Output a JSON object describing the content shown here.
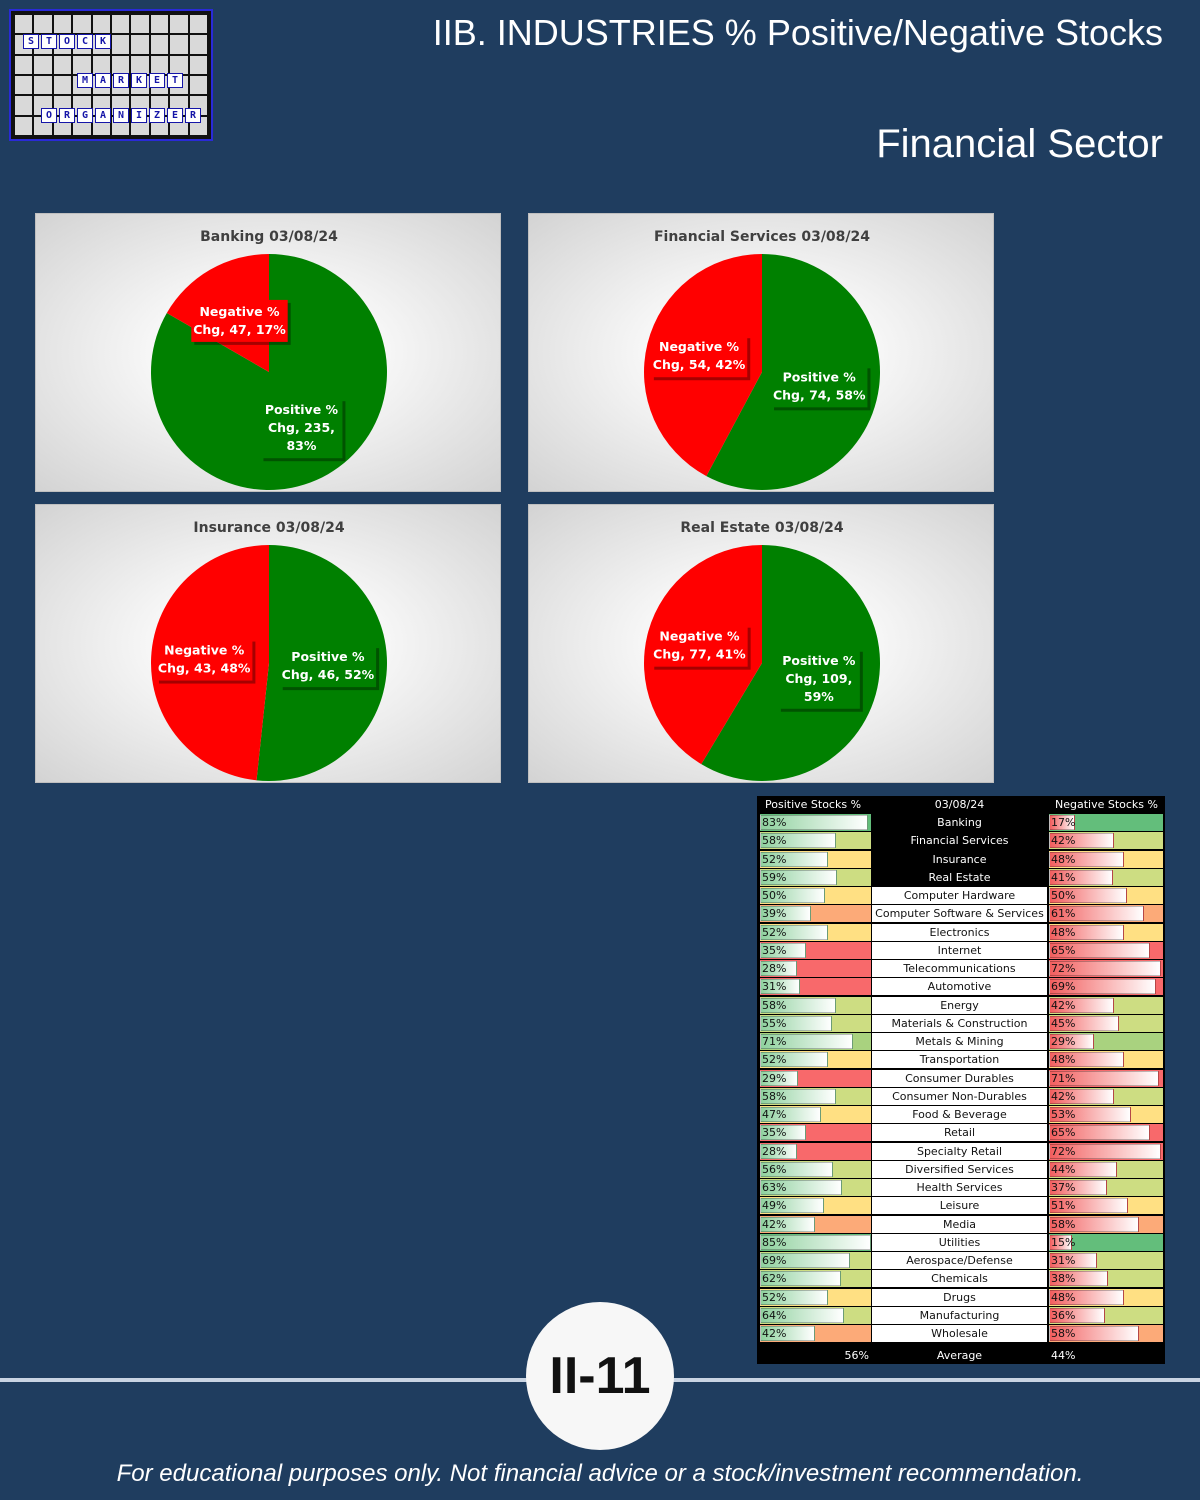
{
  "header": {
    "title": "IIB. INDUSTRIES % Positive/Negative Stocks",
    "subtitle": "Financial Sector"
  },
  "logo": {
    "words": [
      "STOCK",
      "MARKET",
      "ORGANIZER"
    ]
  },
  "chart_data": [
    {
      "type": "pie",
      "title": "Banking 03/08/24",
      "slices": [
        {
          "label": "Positive % Chg",
          "count": 235,
          "pct": 83,
          "color": "#008000"
        },
        {
          "label": "Negative % Chg",
          "count": 47,
          "pct": 17,
          "color": "#ff0000"
        }
      ],
      "data_labels": {
        "positive": [
          "Positive %",
          "Chg, 235,",
          "83%"
        ],
        "negative": [
          "Negative %",
          "Chg, 47, 17%"
        ]
      }
    },
    {
      "type": "pie",
      "title": "Financial Services 03/08/24",
      "slices": [
        {
          "label": "Positive % Chg",
          "count": 74,
          "pct": 58,
          "color": "#008000"
        },
        {
          "label": "Negative % Chg",
          "count": 54,
          "pct": 42,
          "color": "#ff0000"
        }
      ],
      "data_labels": {
        "positive": [
          "Positive %",
          "Chg, 74, 58%"
        ],
        "negative": [
          "Negative %",
          "Chg, 54, 42%"
        ]
      }
    },
    {
      "type": "pie",
      "title": "Insurance 03/08/24",
      "slices": [
        {
          "label": "Positive % Chg",
          "count": 46,
          "pct": 52,
          "color": "#008000"
        },
        {
          "label": "Negative % Chg",
          "count": 43,
          "pct": 48,
          "color": "#ff0000"
        }
      ],
      "data_labels": {
        "positive": [
          "Positive %",
          "Chg, 46, 52%"
        ],
        "negative": [
          "Negative %",
          "Chg, 43, 48%"
        ]
      }
    },
    {
      "type": "pie",
      "title": "Real Estate 03/08/24",
      "slices": [
        {
          "label": "Positive % Chg",
          "count": 109,
          "pct": 59,
          "color": "#008000"
        },
        {
          "label": "Negative % Chg",
          "count": 77,
          "pct": 41,
          "color": "#ff0000"
        }
      ],
      "data_labels": {
        "positive": [
          "Positive %",
          "Chg, 109,",
          "59%"
        ],
        "negative": [
          "Negative %",
          "Chg, 77, 41%"
        ]
      }
    },
    {
      "type": "table",
      "header": {
        "positive": "Positive Stocks %",
        "date": "03/08/24",
        "negative": "Negative Stocks %"
      },
      "rows": [
        {
          "name": "Banking",
          "pos": 83,
          "neg": 17,
          "highlight": true
        },
        {
          "name": "Financial Services",
          "pos": 58,
          "neg": 42,
          "highlight": true
        },
        {
          "name": "Insurance",
          "pos": 52,
          "neg": 48,
          "highlight": true
        },
        {
          "name": "Real Estate",
          "pos": 59,
          "neg": 41,
          "highlight": true
        },
        {
          "name": "Computer Hardware",
          "pos": 50,
          "neg": 50
        },
        {
          "name": "Computer Software & Services",
          "pos": 39,
          "neg": 61
        },
        {
          "name": "Electronics",
          "pos": 52,
          "neg": 48
        },
        {
          "name": "Internet",
          "pos": 35,
          "neg": 65
        },
        {
          "name": "Telecommunications",
          "pos": 28,
          "neg": 72
        },
        {
          "name": "Automotive",
          "pos": 31,
          "neg": 69
        },
        {
          "name": "Energy",
          "pos": 58,
          "neg": 42
        },
        {
          "name": "Materials & Construction",
          "pos": 55,
          "neg": 45
        },
        {
          "name": "Metals & Mining",
          "pos": 71,
          "neg": 29
        },
        {
          "name": "Transportation",
          "pos": 52,
          "neg": 48
        },
        {
          "name": "Consumer Durables",
          "pos": 29,
          "neg": 71
        },
        {
          "name": "Consumer Non-Durables",
          "pos": 58,
          "neg": 42
        },
        {
          "name": "Food & Beverage",
          "pos": 47,
          "neg": 53
        },
        {
          "name": "Retail",
          "pos": 35,
          "neg": 65
        },
        {
          "name": "Specialty Retail",
          "pos": 28,
          "neg": 72
        },
        {
          "name": "Diversified Services",
          "pos": 56,
          "neg": 44
        },
        {
          "name": "Health Services",
          "pos": 63,
          "neg": 37
        },
        {
          "name": "Leisure",
          "pos": 49,
          "neg": 51
        },
        {
          "name": "Media",
          "pos": 42,
          "neg": 58
        },
        {
          "name": "Utilities",
          "pos": 85,
          "neg": 15
        },
        {
          "name": "Aerospace/Defense",
          "pos": 69,
          "neg": 31
        },
        {
          "name": "Chemicals",
          "pos": 62,
          "neg": 38
        },
        {
          "name": "Drugs",
          "pos": 52,
          "neg": 48
        },
        {
          "name": "Manufacturing",
          "pos": 64,
          "neg": 36
        },
        {
          "name": "Wholesale",
          "pos": 42,
          "neg": 58
        }
      ],
      "footer": {
        "pos": "56%",
        "label": "Average",
        "neg": "44%"
      }
    }
  ],
  "badge": "II-11",
  "disclaimer": "For educational purposes only. Not financial advice or a stock/investment recommendation."
}
